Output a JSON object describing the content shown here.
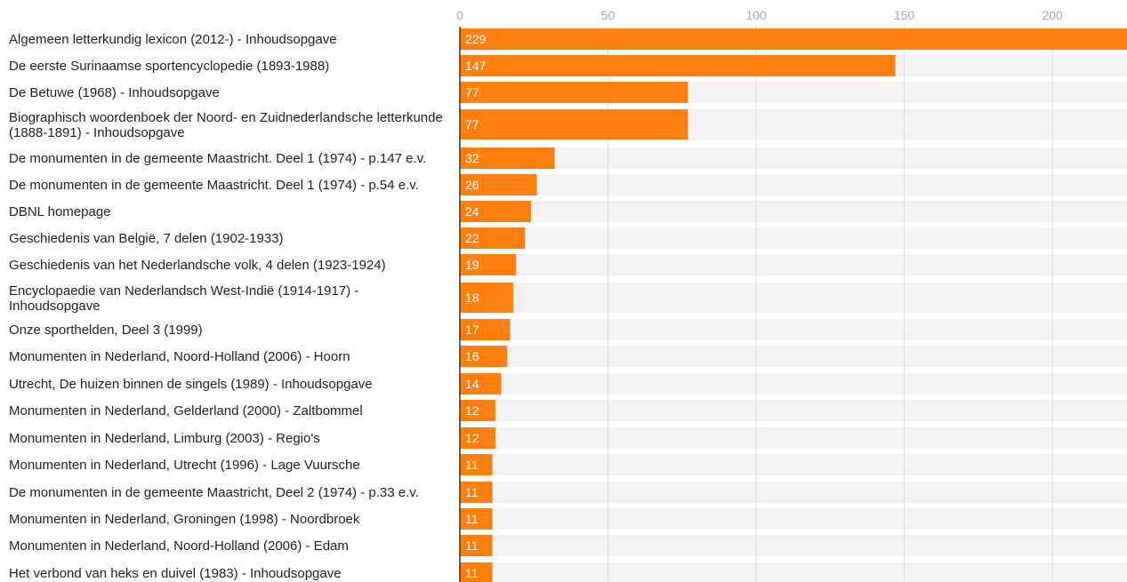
{
  "chart_data": {
    "type": "bar",
    "orientation": "horizontal",
    "title": "",
    "xlabel": "",
    "ylabel": "",
    "xlim": [
      0,
      225
    ],
    "x_ticks": [
      0,
      50,
      100,
      150,
      200
    ],
    "grid": true,
    "legend": "none",
    "colors": {
      "bar": "#ff7f0e",
      "row_background": "#f2f2f2",
      "grid": "#dddddd",
      "tick_label": "#aaaaaa",
      "label_text": "#222222",
      "value_text": "#ffffff",
      "axis": "#333333"
    },
    "categories": [
      "Algemeen letterkundig lexicon (2012-) - Inhoudsopgave",
      "De eerste Surinaamse sportencyclopedie (1893-1988)",
      "De Betuwe (1968) - Inhoudsopgave",
      "Biographisch woordenboek der Noord- en Zuidnederlandsche letterkunde (1888-1891) - Inhoudsopgave",
      "De monumenten in de gemeente Maastricht. Deel 1 (1974) - p.147 e.v.",
      "De monumenten in de gemeente Maastricht. Deel 1 (1974) - p.54 e.v.",
      "DBNL homepage",
      "Geschiedenis van België, 7 delen (1902-1933)",
      "Geschiedenis van het Nederlandsche volk, 4 delen (1923-1924)",
      "Encyclopaedie van Nederlandsch West-Indië (1914-1917) - Inhoudsopgave",
      "Onze sporthelden, Deel 3 (1999)",
      "Monumenten in Nederland, Noord-Holland (2006) - Hoorn",
      "Utrecht, De huizen binnen de singels (1989) - Inhoudsopgave",
      "Monumenten in Nederland, Gelderland (2000) - Zaltbommel",
      "Monumenten in Nederland, Limburg (2003) - Regio's",
      "Monumenten in Nederland, Utrecht (1996) - Lage Vuursche",
      "De monumenten in de gemeente Maastricht, Deel 2 (1974) - p.33 e.v.",
      "Monumenten in Nederland, Groningen (1998) - Noordbroek",
      "Monumenten in Nederland, Noord-Holland (2006) - Edam",
      "Het verbond van heks en duivel (1983) - Inhoudsopgave"
    ],
    "values": [
      229,
      147,
      77,
      77,
      32,
      26,
      24,
      22,
      19,
      18,
      17,
      16,
      14,
      12,
      12,
      11,
      11,
      11,
      11,
      11
    ]
  }
}
